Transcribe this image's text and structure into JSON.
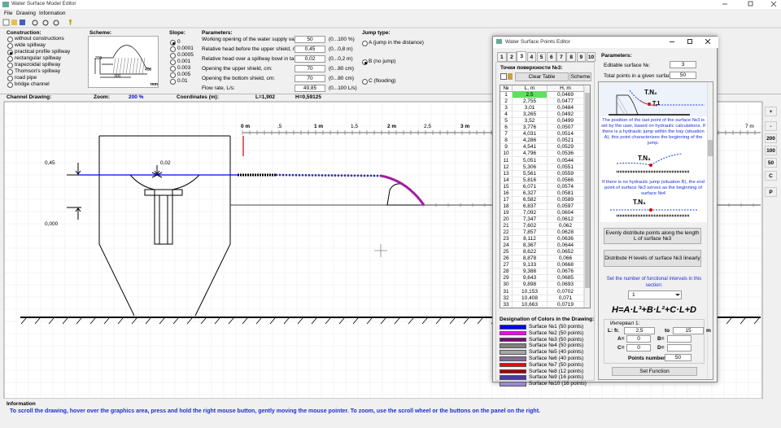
{
  "window": {
    "title": "Water Surface Model Editor",
    "menu": [
      "File",
      "Drawing",
      "Information"
    ]
  },
  "construction": {
    "label": "Construction:",
    "options": [
      "without constructions",
      "wide spillway",
      "practical profile spillway",
      "rectangular spillway",
      "trapezoidal spillway",
      "Thomson's spillway",
      "road pipe",
      "bridge channel"
    ],
    "selected": 2
  },
  "scheme": {
    "label": "Scheme:",
    "dims": [
      "300",
      "300",
      "400"
    ],
    "unit": "mm"
  },
  "slope": {
    "label": "Slope:",
    "options": [
      "0",
      "0.0001",
      "0.0005",
      "0.001",
      "0.003",
      "0.005",
      "0.01"
    ],
    "selected": 0
  },
  "parameters": {
    "label": "Parameters:",
    "rows": [
      {
        "label": "Working opening of the water supply valve, %:",
        "value": "50",
        "range": "(0...100 %)"
      },
      {
        "label": "Relative head before the upper shield, m:",
        "value": "0,45",
        "range": "(0...0,8 m)"
      },
      {
        "label": "Relative head over a spillway bowl in tank, m:",
        "value": "0,02",
        "range": "(0...0,2 m)"
      },
      {
        "label": "Opening the upper shield, cm:",
        "value": "70",
        "range": "(0...80 cm)"
      },
      {
        "label": "Opening the bottom shield, cm:",
        "value": "70",
        "range": "(0...80 cm)"
      },
      {
        "label": "Flow rate, L/s:",
        "value": "49,85",
        "range": "(0...100 L/s)"
      }
    ]
  },
  "jump_type": {
    "label": "Jump type:",
    "options": [
      "A (jump in the distance)",
      "B (no jump)",
      "C (flooding)"
    ],
    "selected": 1
  },
  "status": {
    "channel": "Channel Drawing:",
    "zoom_label": "Zoom:",
    "zoom": "200 %",
    "coords_label": "Coordinates (m):",
    "l": "L=1,902",
    "h": "H=0,59125"
  },
  "drawing": {
    "ruler": [
      "0 m",
      ",5",
      "1 m",
      "1,5",
      "2 m",
      "2,5",
      "3 m",
      "7 m"
    ],
    "labels": [
      "0,45",
      "0,02",
      "0,000"
    ]
  },
  "zoom_buttons": [
    "+",
    "-",
    "200",
    "100",
    "50",
    "C",
    "P"
  ],
  "info": {
    "title": "Information",
    "text": "To scroll the drawing, hover over the graphics area, press and hold the right mouse button, gently moving the mouse pointer. To zoom, use the scroll wheel or the buttons on the panel on the right."
  },
  "editor": {
    "title": "Water Surface Points Editor",
    "tabs": [
      1,
      2,
      3,
      4,
      5,
      6,
      7,
      8,
      9,
      10
    ],
    "active_tab": 2,
    "points_title": "Точки поверхности №3:",
    "clear": "Clear Table",
    "scheme": "Scheme",
    "columns": [
      "№",
      "L, m",
      "H, m"
    ],
    "rows": [
      [
        1,
        "2,5",
        "0,0469"
      ],
      [
        2,
        "2,755",
        "0,0477"
      ],
      [
        3,
        "3,01",
        "0,0484"
      ],
      [
        4,
        "3,265",
        "0,0492"
      ],
      [
        5,
        "3,52",
        "0,0499"
      ],
      [
        6,
        "3,776",
        "0,0507"
      ],
      [
        7,
        "4,031",
        "0,0514"
      ],
      [
        8,
        "4,286",
        "0,0521"
      ],
      [
        9,
        "4,541",
        "0,0529"
      ],
      [
        10,
        "4,796",
        "0,0536"
      ],
      [
        11,
        "5,051",
        "0,0544"
      ],
      [
        12,
        "5,306",
        "0,0551"
      ],
      [
        13,
        "5,561",
        "0,0559"
      ],
      [
        14,
        "5,816",
        "0,0566"
      ],
      [
        15,
        "6,071",
        "0,0574"
      ],
      [
        16,
        "6,327",
        "0,0581"
      ],
      [
        17,
        "6,582",
        "0,0589"
      ],
      [
        18,
        "6,837",
        "0,0597"
      ],
      [
        19,
        "7,092",
        "0,0604"
      ],
      [
        20,
        "7,347",
        "0,0612"
      ],
      [
        21,
        "7,602",
        "0,062"
      ],
      [
        22,
        "7,857",
        "0,0628"
      ],
      [
        23,
        "8,112",
        "0,0636"
      ],
      [
        24,
        "8,367",
        "0,0644"
      ],
      [
        25,
        "8,622",
        "0,0652"
      ],
      [
        26,
        "8,878",
        "0,066"
      ],
      [
        27,
        "9,133",
        "0,0668"
      ],
      [
        28,
        "9,388",
        "0,0676"
      ],
      [
        29,
        "9,643",
        "0,0685"
      ],
      [
        30,
        "9,898",
        "0,0693"
      ],
      [
        31,
        "10,153",
        "0,0702"
      ],
      [
        32,
        "10,408",
        "0,071"
      ],
      [
        33,
        "10,663",
        "0,0719"
      ]
    ],
    "legend_title": "Designation of Colors in the Drawing:",
    "legend": [
      {
        "name": "Surface №1 (50 points)",
        "color": "#0000ff"
      },
      {
        "name": "Surface №2 (50 points)",
        "color": "#ff00ff"
      },
      {
        "name": "Surface №3 (50 points)",
        "color": "#800080"
      },
      {
        "name": "Surface №4 (50 points)",
        "color": "#808080"
      },
      {
        "name": "Surface №5 (40 points)",
        "color": "#a6a6a6"
      },
      {
        "name": "Surface №6 (40 points)",
        "color": "#8a6a9a"
      },
      {
        "name": "Surface №7 (50 points)",
        "color": "#ff0000"
      },
      {
        "name": "Surface №8 (12 points)",
        "color": "#a00000"
      },
      {
        "name": "Surface №9 (16 points)",
        "color": "#4b3aa0"
      },
      {
        "name": "Surface №10 (16 points)",
        "color": "#9a8ad0"
      }
    ],
    "params_label": "Parameters:",
    "editable_label": "Editable surface №:",
    "editable": "3",
    "total_label": "Total points in a given surface:",
    "total": "50",
    "img_labels": [
      "T.N₂",
      "T.1",
      "T.N₃",
      "T.N₃"
    ],
    "text1": "The position of the last point of the surface №3 is set by the user, based on hydraulic calculations. If there is a hydraulic jump within the tray (situation A), this point characterizes the beginning of the jump.",
    "text2": "If there is no hydraulic jump (situation B), the end point of surface №3 serves as the beginning of surface №4",
    "btn_even": "Evenly distribute points along the length L of surface №3",
    "btn_linear": "Distribute H levels of surface №3 linearly",
    "intervals_label": "Set the number of functional intervals in this section:",
    "intervals": "1",
    "formula": "H=A·L³+B·L²+C·L+D",
    "interval_title": "Интервал 1:",
    "from_label": "L: fr.",
    "from": "2,5",
    "to_label": "to",
    "to": "15",
    "unit": "m",
    "a_label": "A=",
    "a": "0",
    "b_label": "B=",
    "c_label": "C=",
    "c": "0",
    "d_label": "D=",
    "points_label": "Points number:",
    "points": "50",
    "set": "Set Function"
  }
}
